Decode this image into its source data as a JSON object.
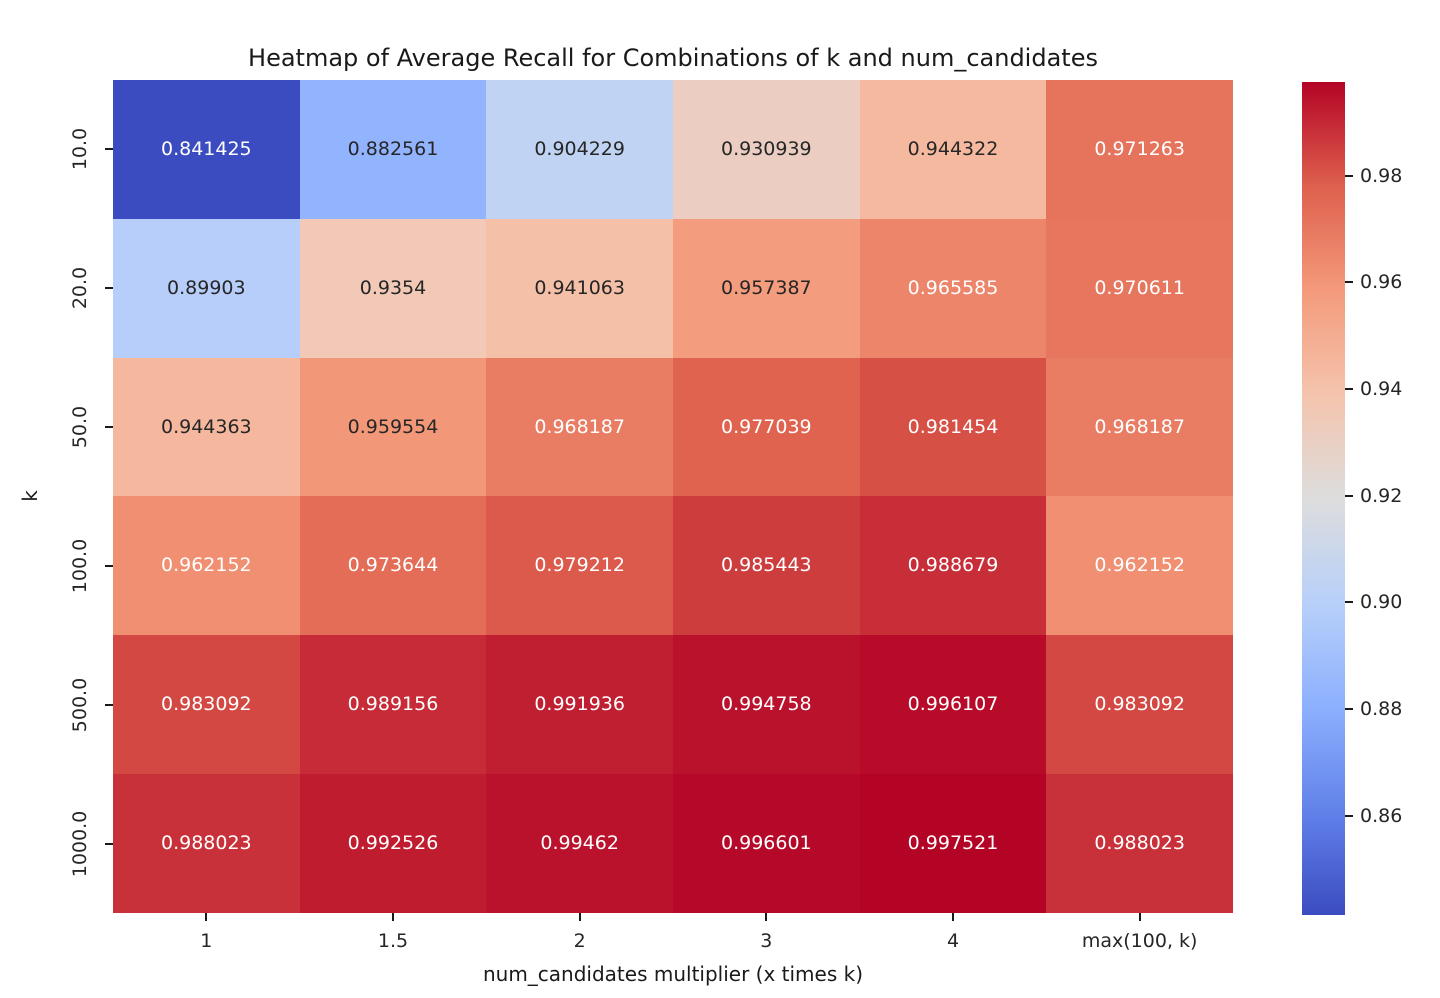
{
  "figure": {
    "background": "#ffffff"
  },
  "chart_data": {
    "type": "heatmap",
    "title": "Heatmap of Average Recall for Combinations of k and num_candidates",
    "xlabel": "num_candidates multiplier (x times k)",
    "ylabel": "k",
    "x_categories": [
      "1",
      "1.5",
      "2",
      "3",
      "4",
      "max(100, k)"
    ],
    "y_categories": [
      "10.0",
      "20.0",
      "50.0",
      "100.0",
      "500.0",
      "1000.0"
    ],
    "rows": [
      [
        "0.841425",
        "0.882561",
        "0.904229",
        "0.930939",
        "0.944322",
        "0.971263"
      ],
      [
        "0.89903",
        "0.9354",
        "0.941063",
        "0.957387",
        "0.965585",
        "0.970611"
      ],
      [
        "0.944363",
        "0.959554",
        "0.968187",
        "0.977039",
        "0.981454",
        "0.968187"
      ],
      [
        "0.962152",
        "0.973644",
        "0.979212",
        "0.985443",
        "0.988679",
        "0.962152"
      ],
      [
        "0.983092",
        "0.989156",
        "0.991936",
        "0.994758",
        "0.996107",
        "0.983092"
      ],
      [
        "0.988023",
        "0.992526",
        "0.99462",
        "0.996601",
        "0.997521",
        "0.988023"
      ]
    ],
    "vmin": 0.841425,
    "vmax": 0.997521,
    "colormap": "coolwarm",
    "colormap_anchors": [
      "#3B4CC0",
      "#6282EA",
      "#8DB0FE",
      "#B8D0F9",
      "#DDDDDD",
      "#F5C4AD",
      "#F49A7B",
      "#DE604D",
      "#B40426"
    ],
    "colorbar_tick_labels": [
      "0.98",
      "0.96",
      "0.94",
      "0.92",
      "0.90",
      "0.88",
      "0.86"
    ],
    "annotation_text_colors": {
      "dark": "#262626",
      "light": "#ffffff"
    },
    "legend_position": "right-colorbar",
    "grid": false
  }
}
